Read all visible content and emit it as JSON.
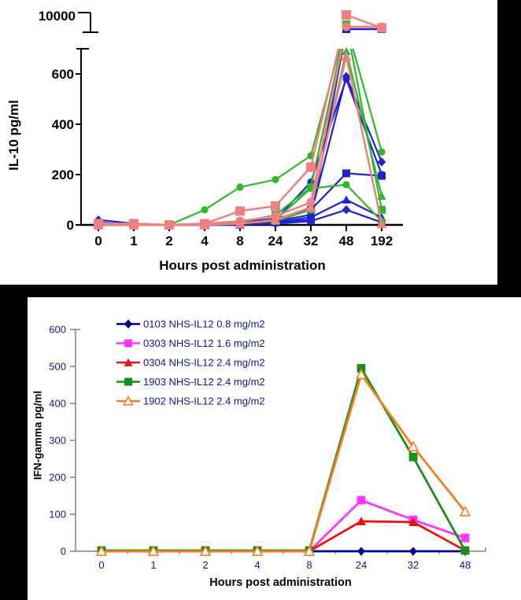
{
  "page": {
    "background": "#000000"
  },
  "chart_data": [
    {
      "type": "line",
      "title": "",
      "xlabel": "Hours post administration",
      "ylabel": "IL-10 pg/ml",
      "categories": [
        0,
        1,
        2,
        4,
        8,
        24,
        32,
        48,
        192
      ],
      "x_tick_labels": [
        "0",
        "1",
        "2",
        "4",
        "8",
        "24",
        "32",
        "48",
        "192"
      ],
      "y_ticks": [
        0,
        200,
        400,
        600
      ],
      "ylim": [
        0,
        700
      ],
      "y_axis_break": {
        "upper_tick_label": "10000",
        "break_values_range": [
          9000,
          10000
        ]
      },
      "grid": false,
      "legend": "none",
      "series": [
        {
          "name": "blue-diamond-1",
          "color": "#2222CC",
          "marker": "diamond",
          "values": [
            20,
            5,
            0,
            5,
            5,
            15,
            40,
            590,
            250
          ]
        },
        {
          "name": "blue-circle-1",
          "color": "#2222CC",
          "marker": "circle",
          "values": [
            5,
            0,
            0,
            0,
            5,
            20,
            170,
            580,
            200
          ]
        },
        {
          "name": "blue-square-1",
          "color": "#2222CC",
          "marker": "square",
          "values": [
            0,
            0,
            0,
            0,
            10,
            25,
            60,
            205,
            195
          ]
        },
        {
          "name": "blue-triangle-1",
          "color": "#2222CC",
          "marker": "triangle",
          "values": [
            10,
            0,
            0,
            5,
            0,
            10,
            30,
            100,
            30
          ]
        },
        {
          "name": "blue-square-2",
          "color": "#2222CC",
          "marker": "square",
          "values": [
            0,
            0,
            0,
            0,
            5,
            10,
            20,
            9300,
            9300
          ]
        },
        {
          "name": "blue-diamond-2",
          "color": "#2222CC",
          "marker": "diamond",
          "values": [
            0,
            0,
            0,
            0,
            0,
            5,
            15,
            60,
            10
          ]
        },
        {
          "name": "green-circle-1",
          "color": "#2EB82E",
          "marker": "circle",
          "values": [
            0,
            0,
            0,
            60,
            150,
            180,
            275,
            9500,
            290
          ]
        },
        {
          "name": "green-square-1",
          "color": "#2EB82E",
          "marker": "square",
          "values": [
            0,
            0,
            0,
            5,
            10,
            40,
            150,
            9500,
            60
          ]
        },
        {
          "name": "green-triangle-1",
          "color": "#2EB82E",
          "marker": "triangle",
          "values": [
            0,
            0,
            0,
            0,
            5,
            15,
            60,
            690,
            115
          ]
        },
        {
          "name": "green-circle-2",
          "color": "#2EB82E",
          "marker": "circle",
          "values": [
            0,
            0,
            0,
            0,
            5,
            20,
            145,
            160,
            15
          ]
        },
        {
          "name": "salmon-square-1",
          "color": "#F08080",
          "marker": "square",
          "values": [
            5,
            5,
            0,
            5,
            55,
            75,
            230,
            9900,
            9350
          ]
        },
        {
          "name": "salmon-circle-1",
          "color": "#F08080",
          "marker": "circle",
          "values": [
            0,
            0,
            0,
            5,
            15,
            35,
            90,
            9400,
            9400
          ]
        },
        {
          "name": "salmon-triangle-1",
          "color": "#F08080",
          "marker": "triangle",
          "values": [
            0,
            0,
            0,
            0,
            5,
            20,
            70,
            670,
            5
          ]
        }
      ]
    },
    {
      "type": "line",
      "title": "",
      "xlabel": "Hours post administration",
      "ylabel": "IFN-gamma pg/ml",
      "categories": [
        0,
        1,
        2,
        4,
        8,
        24,
        32,
        48
      ],
      "x_tick_labels": [
        "0",
        "1",
        "2",
        "4",
        "8",
        "24",
        "32",
        "48"
      ],
      "y_ticks": [
        0,
        100,
        200,
        300,
        400,
        500,
        600
      ],
      "ylim": [
        0,
        600
      ],
      "grid": false,
      "legend_position": "top-left-inside",
      "tick_label_color": "#14148C",
      "axis_color": "#808080",
      "series": [
        {
          "name": "0103 NHS-IL12 0.8 mg/m2",
          "color": "#00008B",
          "marker": "diamond",
          "values": [
            0,
            0,
            0,
            0,
            0,
            0,
            0,
            0
          ]
        },
        {
          "name": "0303 NHS-IL12 1.6 mg/m2",
          "color": "#FF33FF",
          "marker": "square",
          "values": [
            0,
            0,
            0,
            0,
            0,
            138,
            85,
            36
          ]
        },
        {
          "name": "0304 NHS-IL12 2.4 mg/m2",
          "color": "#EE1111",
          "marker": "triangle",
          "values": [
            0,
            0,
            0,
            0,
            0,
            81,
            79,
            2
          ]
        },
        {
          "name": "1903 NHS-IL12 2.4 mg/m2",
          "color": "#189018",
          "marker": "square",
          "values": [
            2,
            2,
            2,
            2,
            2,
            495,
            255,
            2
          ]
        },
        {
          "name": "1902 NHS-IL12  2.4 mg/m2",
          "color": "#F57E20",
          "marker": "triangle-open",
          "values": [
            0,
            0,
            0,
            0,
            0,
            478,
            283,
            107
          ]
        }
      ]
    }
  ]
}
